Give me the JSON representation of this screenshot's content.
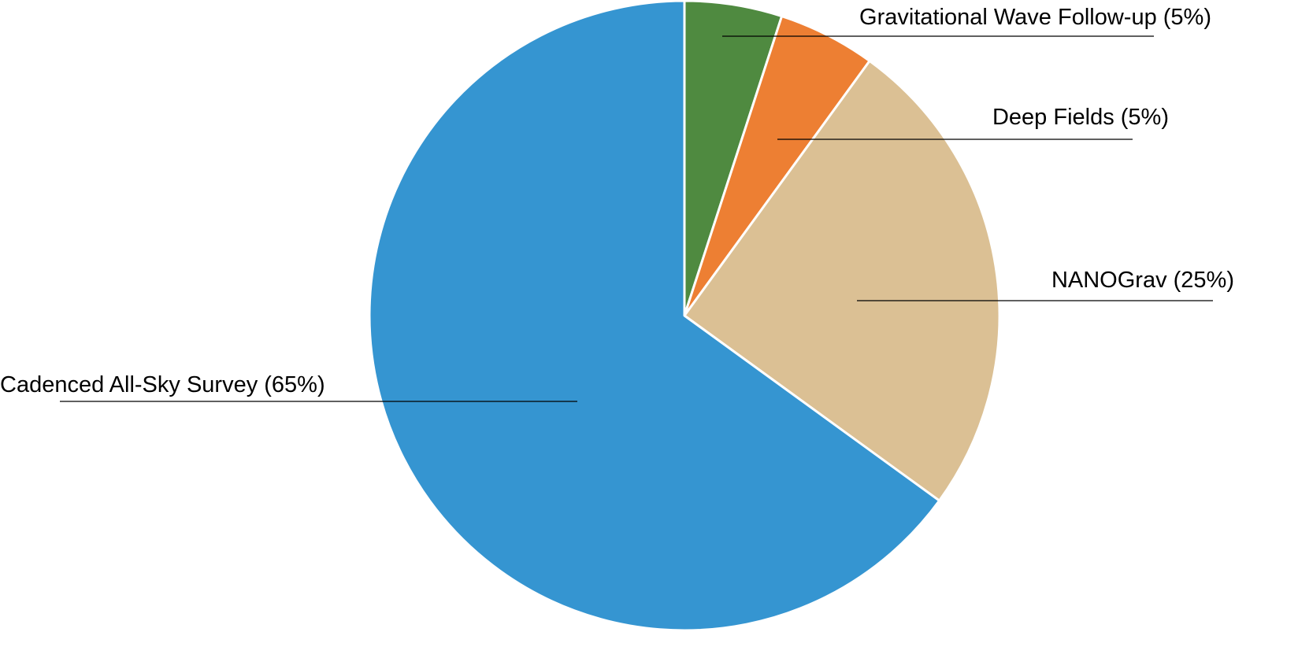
{
  "chart_data": {
    "type": "pie",
    "title": "",
    "start_angle_deg": 0,
    "direction": "clockwise",
    "slices": [
      {
        "label": "Gravitational Wave Follow-up (5%)",
        "value": 5,
        "color": "#4F8A40"
      },
      {
        "label": "Deep Fields (5%)",
        "value": 5,
        "color": "#ED7F33"
      },
      {
        "label": "NANOGrav (25%)",
        "value": 25,
        "color": "#DBC094"
      },
      {
        "label": "Cadenced All-Sky Survey (65%)",
        "value": 65,
        "color": "#3595D1"
      }
    ],
    "slice_border_color": "#FFFFFF",
    "leader_line_color": "#000000"
  }
}
